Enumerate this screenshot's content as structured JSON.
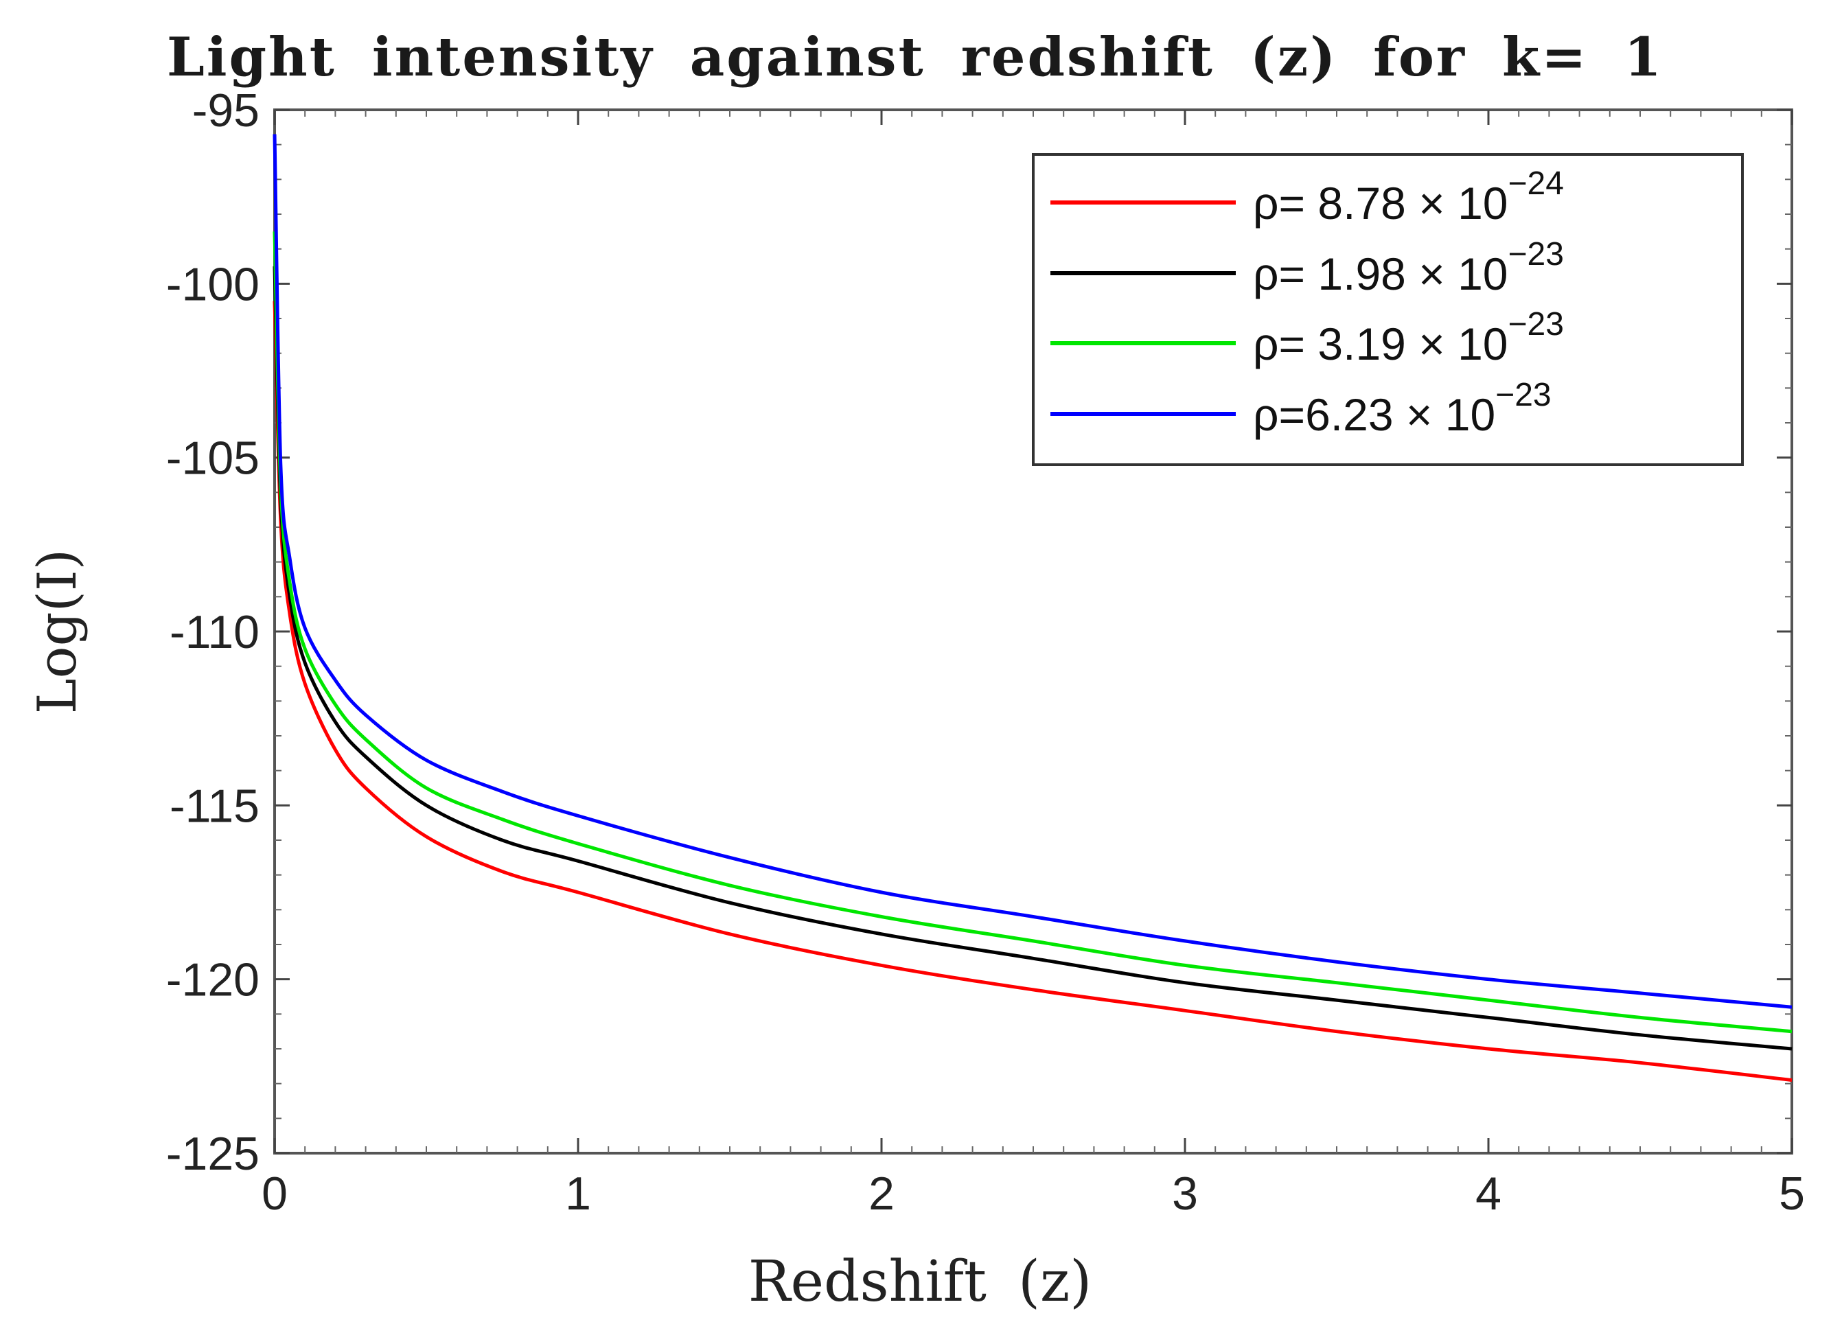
{
  "chart_data": {
    "type": "line",
    "title": "Light intensity against redshift (z) for k= 1",
    "xlabel": "Redshift  (z)",
    "ylabel": "Log(I)",
    "xlim": [
      0,
      5
    ],
    "ylim": [
      -125,
      -95
    ],
    "xticks": [
      "0",
      "1",
      "2",
      "3",
      "4",
      "5"
    ],
    "yticks": [
      "-95",
      "-100",
      "-105",
      "-110",
      "-115",
      "-120",
      "-125"
    ],
    "grid": false,
    "legend_position": "top-right",
    "x": [
      0,
      0.02,
      0.05,
      0.1,
      0.2,
      0.3,
      0.5,
      0.75,
      1,
      1.5,
      2,
      2.5,
      3,
      3.5,
      4,
      4.5,
      5
    ],
    "series": [
      {
        "name": "ρ= 8.78 × 10^−24",
        "label_prefix": "ρ=  8.78  ×  10",
        "label_exp": "−24",
        "color": "#ff0000",
        "values": [
          -100.5,
          -106.8,
          -109.5,
          -111.5,
          -113.4,
          -114.5,
          -115.9,
          -116.9,
          -117.5,
          -118.7,
          -119.6,
          -120.3,
          -120.9,
          -121.5,
          -122.0,
          -122.4,
          -122.9
        ]
      },
      {
        "name": "ρ= 1.98 × 10^−23",
        "label_prefix": "ρ=  1.98  ×  10",
        "label_exp": "−23",
        "color": "#000000",
        "values": [
          -99.5,
          -106.2,
          -109.0,
          -110.9,
          -112.6,
          -113.6,
          -115.0,
          -116.0,
          -116.6,
          -117.8,
          -118.7,
          -119.4,
          -120.1,
          -120.6,
          -121.1,
          -121.6,
          -122.0
        ]
      },
      {
        "name": "ρ= 3.19 × 10^−23",
        "label_prefix": "ρ=  3.19  ×  10",
        "label_exp": "−23",
        "color": "#00e600",
        "values": [
          -98.5,
          -105.8,
          -108.6,
          -110.5,
          -112.1,
          -113.1,
          -114.5,
          -115.4,
          -116.1,
          -117.3,
          -118.2,
          -118.9,
          -119.6,
          -120.1,
          -120.6,
          -121.1,
          -121.5
        ]
      },
      {
        "name": "ρ=6.23 × 10^−23",
        "label_prefix": "ρ=6.23  ×  10",
        "label_exp": "−23",
        "color": "#0000ff",
        "values": [
          -95.7,
          -105.2,
          -107.9,
          -109.9,
          -111.4,
          -112.4,
          -113.7,
          -114.6,
          -115.3,
          -116.5,
          -117.5,
          -118.2,
          -118.9,
          -119.5,
          -120.0,
          -120.4,
          -120.8
        ]
      }
    ]
  }
}
